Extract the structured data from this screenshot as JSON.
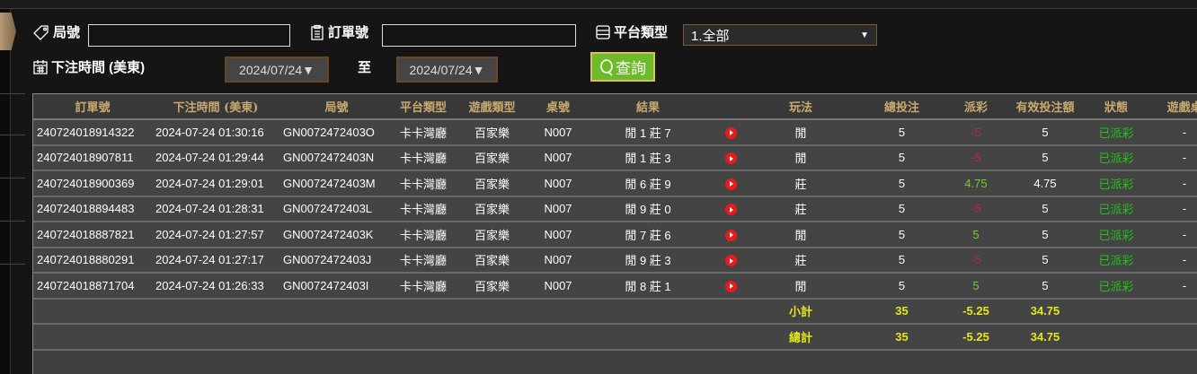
{
  "filters": {
    "round_label": "局號",
    "round_value": "",
    "order_label": "訂單號",
    "order_value": "",
    "platform_label": "平台類型",
    "platform_value": "1.全部",
    "time_label": "下注時間 (美東)",
    "date_from": "2024/07/24▼",
    "to_label": "至",
    "date_to": "2024/07/24▼",
    "search_label": "查詢"
  },
  "table": {
    "headers": [
      "訂單號",
      "下注時間 (美東)",
      "局號",
      "平台類型",
      "遊戲類型",
      "桌號",
      "結果",
      "",
      "玩法",
      "總投注",
      "派彩",
      "有效投注額",
      "狀態",
      "遊戲桌"
    ],
    "rows": [
      {
        "order": "240724018914322",
        "time": "2024-07-24 01:30:16",
        "round": "GN0072472403O",
        "platform": "卡卡灣廳",
        "game": "百家樂",
        "table": "N007",
        "result": "閒 1 莊 7",
        "play": "閒",
        "bet": "5",
        "payout": "-5",
        "payout_type": "neg",
        "valid": "5",
        "status": "已派彩",
        "extra": "-"
      },
      {
        "order": "240724018907811",
        "time": "2024-07-24 01:29:44",
        "round": "GN0072472403N",
        "platform": "卡卡灣廳",
        "game": "百家樂",
        "table": "N007",
        "result": "閒 1 莊 3",
        "play": "閒",
        "bet": "5",
        "payout": "-5",
        "payout_type": "neg",
        "valid": "5",
        "status": "已派彩",
        "extra": "-"
      },
      {
        "order": "240724018900369",
        "time": "2024-07-24 01:29:01",
        "round": "GN0072472403M",
        "platform": "卡卡灣廳",
        "game": "百家樂",
        "table": "N007",
        "result": "閒 6 莊 9",
        "play": "莊",
        "bet": "5",
        "payout": "4.75",
        "payout_type": "pos",
        "valid": "4.75",
        "status": "已派彩",
        "extra": "-"
      },
      {
        "order": "240724018894483",
        "time": "2024-07-24 01:28:31",
        "round": "GN0072472403L",
        "platform": "卡卡灣廳",
        "game": "百家樂",
        "table": "N007",
        "result": "閒 9 莊 0",
        "play": "莊",
        "bet": "5",
        "payout": "-5",
        "payout_type": "neg",
        "valid": "5",
        "status": "已派彩",
        "extra": "-"
      },
      {
        "order": "240724018887821",
        "time": "2024-07-24 01:27:57",
        "round": "GN0072472403K",
        "platform": "卡卡灣廳",
        "game": "百家樂",
        "table": "N007",
        "result": "閒 7 莊 6",
        "play": "閒",
        "bet": "5",
        "payout": "5",
        "payout_type": "pos",
        "valid": "5",
        "status": "已派彩",
        "extra": "-"
      },
      {
        "order": "240724018880291",
        "time": "2024-07-24 01:27:17",
        "round": "GN0072472403J",
        "platform": "卡卡灣廳",
        "game": "百家樂",
        "table": "N007",
        "result": "閒 9 莊 3",
        "play": "莊",
        "bet": "5",
        "payout": "-5",
        "payout_type": "neg",
        "valid": "5",
        "status": "已派彩",
        "extra": "-"
      },
      {
        "order": "240724018871704",
        "time": "2024-07-24 01:26:33",
        "round": "GN0072472403I",
        "platform": "卡卡灣廳",
        "game": "百家樂",
        "table": "N007",
        "result": "閒 8 莊 1",
        "play": "閒",
        "bet": "5",
        "payout": "5",
        "payout_type": "pos",
        "valid": "5",
        "status": "已派彩",
        "extra": "-"
      }
    ],
    "subtotal": {
      "label": "小計",
      "bet": "35",
      "payout": "-5.25",
      "valid": "34.75"
    },
    "total": {
      "label": "總計",
      "bet": "35",
      "payout": "-5.25",
      "valid": "34.75"
    }
  },
  "colors": {
    "header_text": "#c8aa6e",
    "negative": "#c0263e",
    "positive": "#6ed02a",
    "status": "#21c21a",
    "summary": "#e6e61a",
    "search_button": "#6dbb2a"
  }
}
